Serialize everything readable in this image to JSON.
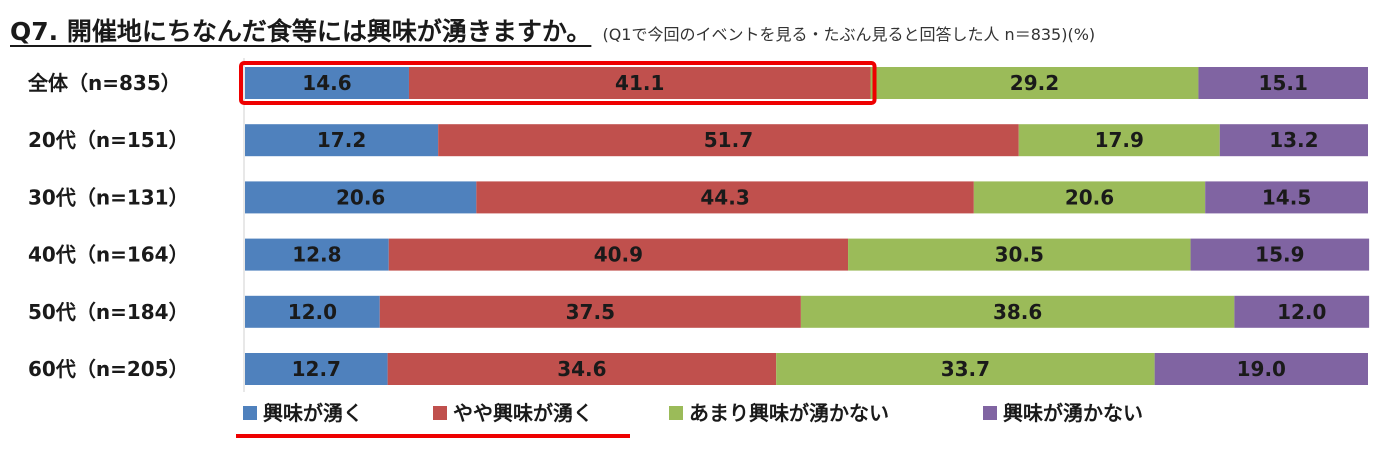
{
  "title": "Q7. 開催地にちなんだ食等には興味が湧きますか。",
  "subtitle": "(Q1で今回のイベントを見る・たぶん見ると回答した人 n＝835)(%)",
  "colors": {
    "series": [
      "#4f81bd",
      "#c0504d",
      "#9bbb59",
      "#8064a2"
    ],
    "highlight": "#ee0000"
  },
  "chart_data": {
    "type": "bar",
    "orientation": "horizontal",
    "stacked": true,
    "categories": [
      "全体（n=835）",
      "20代（n=151）",
      "30代（n=131）",
      "40代（n=164）",
      "50代（n=184）",
      "60代（n=205）"
    ],
    "series": [
      {
        "name": "興味が湧く",
        "values": [
          14.6,
          17.2,
          20.6,
          12.8,
          12.0,
          12.7
        ]
      },
      {
        "name": "やや興味が湧く",
        "values": [
          41.1,
          51.7,
          44.3,
          40.9,
          37.5,
          34.6
        ]
      },
      {
        "name": "あまり興味が湧かない",
        "values": [
          29.2,
          17.9,
          20.6,
          30.5,
          38.6,
          33.7
        ]
      },
      {
        "name": "興味が湧かない",
        "values": [
          15.1,
          13.2,
          14.5,
          15.9,
          12.0,
          19.0
        ]
      }
    ],
    "xlim": [
      0,
      100
    ],
    "legend_position": "bottom",
    "grid": false
  }
}
